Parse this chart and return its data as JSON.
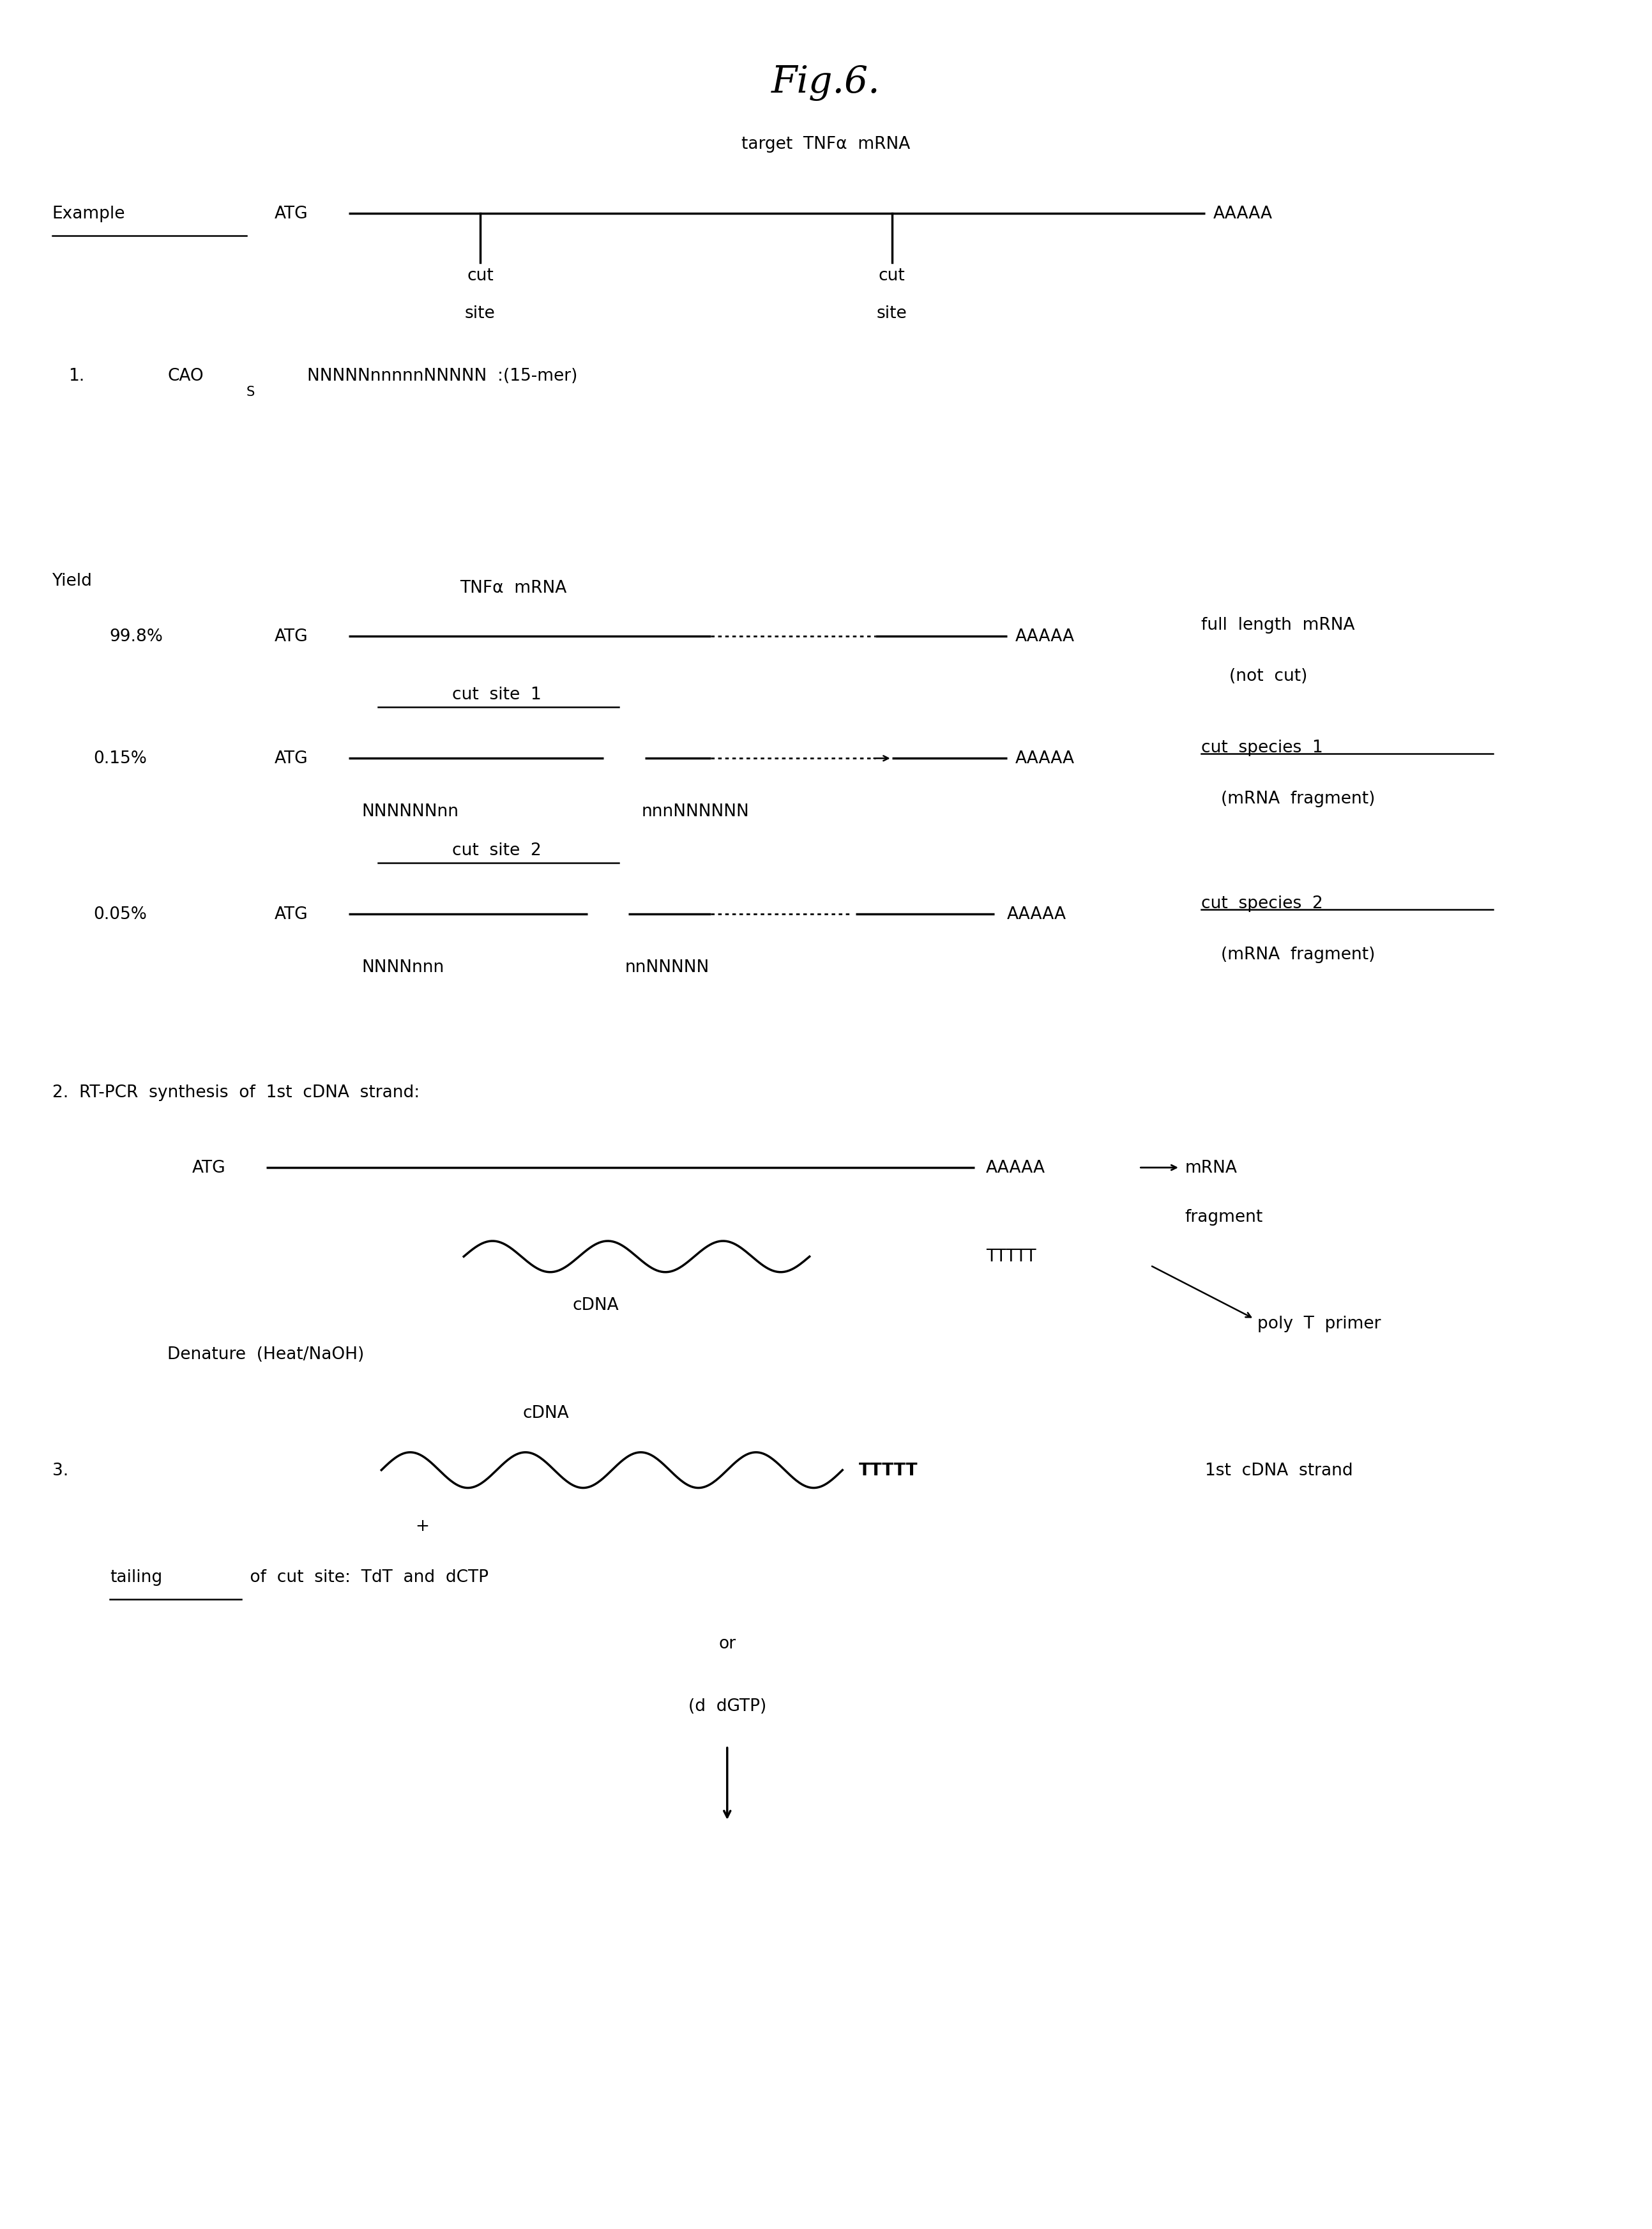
{
  "title": "Fig.6.",
  "bg_color": "#ffffff",
  "fig_width": 25.87,
  "fig_height": 34.91,
  "sections": {
    "example_label": "Example",
    "example_ATG": "ATG",
    "example_AAAAA": "AAAAA",
    "target_label": "target  TNFα  mRNA",
    "cut_word1": "cut",
    "cut_word2": "site",
    "section1_number": "1.",
    "section1_CAO": "CAO",
    "section1_sub": "S",
    "section1_seq": "NNNNNnnnnnNNNNN  :(15-mer)",
    "yield_label": "Yield",
    "row1_pct": "99.8%",
    "row1_ATG": "ATG",
    "row1_label": "TNFα  mRNA",
    "row1_AAAAA": "AAAAA",
    "row1_desc1": "full  length  mRNA",
    "row1_desc2": "(not  cut)",
    "row2_pct": "0.15%",
    "row2_ATG": "ATG",
    "row2_cutlabel": "cut  site  1",
    "row2_AAAAA": "AAAAA",
    "row2_desc1": "cut  species  1",
    "row2_desc2": "(mRNA  fragment)",
    "row2_seq1": "NNNNNNnn",
    "row2_seq2": "nnnNNNNNN",
    "row3_pct": "0.05%",
    "row3_ATG": "ATG",
    "row3_cutlabel": "cut  site  2",
    "row3_AAAAA": "AAAAA",
    "row3_desc1": "cut  species  2",
    "row3_desc2": "(mRNA  fragment)",
    "row3_seq1": "NNNNnnn",
    "row3_seq2": "nnNNNNN",
    "section2_header": "2.  RT-PCR  synthesis  of  1st  cDNA  strand:",
    "section2_ATG": "ATG",
    "section2_AAAAA": "AAAAA",
    "section2_mRNA": "←mRNA",
    "section2_fragment": "fragment",
    "section2_TTTTT": "TTTTT",
    "section2_cDNA": "cDNA",
    "section2_polyT": "poly  T  primer",
    "section2_denature": "Denature  (Heat/NaOH)",
    "section3_label": "3.",
    "section3_cDNA": "cDNA",
    "section3_TTTTT": "TTTTT",
    "section3_strand": "1st  cDNA  strand",
    "section3_plus": "+",
    "section3_tailing": "tailing",
    "section3_rest": " of  cut  site:  TdT  and  dCTP",
    "section3_or": "or",
    "section3_ddGTP": "(d  dGTP)"
  }
}
